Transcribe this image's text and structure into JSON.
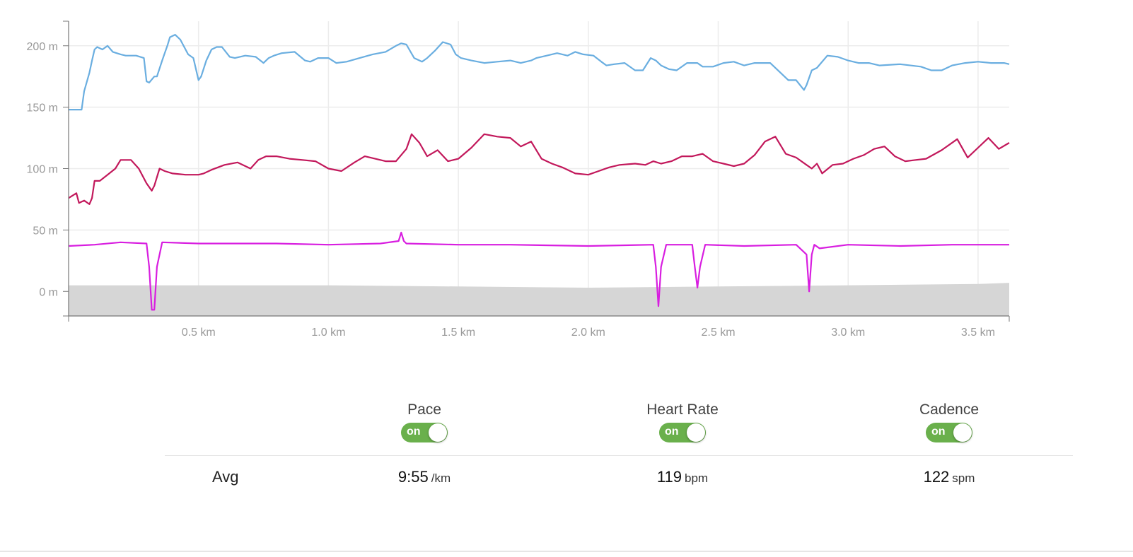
{
  "chart_data": {
    "type": "line",
    "title": "",
    "xlabel": "",
    "ylabel": "",
    "xlim": [
      0,
      3.62
    ],
    "ylim": [
      -20,
      220
    ],
    "x_ticks": [
      "0.5 km",
      "1.0 km",
      "1.5 km",
      "2.0 km",
      "2.5 km",
      "3.0 km",
      "3.5 km"
    ],
    "y_ticks": [
      "200 m",
      "150 m",
      "100 m",
      "50 m",
      "0 m"
    ],
    "grid": true,
    "elevation_fill": {
      "color": "#d6d6d6",
      "x": [
        0,
        0.5,
        1.0,
        1.5,
        2.0,
        2.5,
        3.0,
        3.5,
        3.62
      ],
      "y": [
        5,
        5,
        5,
        4,
        3,
        4,
        5,
        6,
        7
      ]
    },
    "series": [
      {
        "color": "#6aaee0",
        "x": [
          0,
          0.05,
          0.06,
          0.08,
          0.09,
          0.1,
          0.11,
          0.13,
          0.15,
          0.17,
          0.2,
          0.22,
          0.26,
          0.29,
          0.3,
          0.31,
          0.33,
          0.34,
          0.36,
          0.37,
          0.38,
          0.39,
          0.41,
          0.43,
          0.46,
          0.48,
          0.5,
          0.51,
          0.53,
          0.55,
          0.57,
          0.59,
          0.62,
          0.64,
          0.68,
          0.72,
          0.75,
          0.77,
          0.79,
          0.82,
          0.87,
          0.91,
          0.93,
          0.96,
          1.0,
          1.03,
          1.07,
          1.12,
          1.17,
          1.22,
          1.26,
          1.28,
          1.3,
          1.33,
          1.36,
          1.38,
          1.41,
          1.44,
          1.47,
          1.49,
          1.51,
          1.55,
          1.6,
          1.65,
          1.7,
          1.74,
          1.78,
          1.8,
          1.84,
          1.88,
          1.92,
          1.95,
          1.98,
          2.02,
          2.05,
          2.07,
          2.1,
          2.14,
          2.18,
          2.21,
          2.24,
          2.26,
          2.28,
          2.31,
          2.34,
          2.38,
          2.42,
          2.44,
          2.48,
          2.52,
          2.56,
          2.6,
          2.64,
          2.7,
          2.77,
          2.8,
          2.83,
          2.84,
          2.86,
          2.88,
          2.92,
          2.96,
          3.0,
          3.04,
          3.08,
          3.12,
          3.2,
          3.28,
          3.32,
          3.36,
          3.4,
          3.45,
          3.5,
          3.55,
          3.6,
          3.62
        ],
        "y": [
          148,
          148,
          163,
          178,
          188,
          197,
          199,
          197,
          200,
          195,
          193,
          192,
          192,
          190,
          171,
          170,
          175,
          175,
          188,
          194,
          200,
          207,
          209,
          205,
          193,
          190,
          172,
          175,
          188,
          197,
          199,
          199,
          191,
          190,
          192,
          191,
          186,
          190,
          192,
          194,
          195,
          188,
          187,
          190,
          190,
          186,
          187,
          190,
          193,
          195,
          200,
          202,
          201,
          190,
          187,
          190,
          196,
          203,
          201,
          193,
          190,
          188,
          186,
          187,
          188,
          186,
          188,
          190,
          192,
          194,
          192,
          195,
          193,
          192,
          187,
          184,
          185,
          186,
          180,
          180,
          190,
          188,
          184,
          181,
          180,
          186,
          186,
          183,
          183,
          186,
          187,
          184,
          186,
          186,
          172,
          172,
          164,
          168,
          180,
          182,
          192,
          191,
          188,
          186,
          186,
          184,
          185,
          183,
          180,
          180,
          184,
          186,
          187,
          186,
          186,
          185
        ]
      },
      {
        "color": "#c2185b",
        "x": [
          0,
          0.03,
          0.04,
          0.05,
          0.06,
          0.08,
          0.09,
          0.1,
          0.12,
          0.15,
          0.18,
          0.2,
          0.24,
          0.27,
          0.3,
          0.32,
          0.33,
          0.35,
          0.37,
          0.4,
          0.45,
          0.5,
          0.52,
          0.55,
          0.6,
          0.65,
          0.7,
          0.73,
          0.76,
          0.8,
          0.85,
          0.9,
          0.95,
          1.0,
          1.05,
          1.1,
          1.14,
          1.18,
          1.22,
          1.26,
          1.3,
          1.32,
          1.35,
          1.38,
          1.42,
          1.46,
          1.5,
          1.55,
          1.6,
          1.65,
          1.7,
          1.74,
          1.78,
          1.82,
          1.86,
          1.9,
          1.95,
          2.0,
          2.04,
          2.08,
          2.12,
          2.18,
          2.22,
          2.25,
          2.28,
          2.32,
          2.36,
          2.4,
          2.44,
          2.48,
          2.52,
          2.56,
          2.6,
          2.64,
          2.68,
          2.72,
          2.76,
          2.8,
          2.84,
          2.86,
          2.88,
          2.9,
          2.94,
          2.98,
          3.02,
          3.06,
          3.1,
          3.14,
          3.18,
          3.22,
          3.26,
          3.3,
          3.36,
          3.42,
          3.46,
          3.5,
          3.54,
          3.58,
          3.62
        ],
        "y": [
          76,
          80,
          72,
          73,
          74,
          71,
          76,
          90,
          90,
          95,
          100,
          107,
          107,
          100,
          88,
          82,
          86,
          100,
          98,
          96,
          95,
          95,
          96,
          99,
          103,
          105,
          100,
          107,
          110,
          110,
          108,
          107,
          106,
          100,
          98,
          105,
          110,
          108,
          106,
          106,
          116,
          128,
          121,
          110,
          115,
          106,
          108,
          117,
          128,
          126,
          125,
          118,
          122,
          108,
          104,
          101,
          96,
          95,
          98,
          101,
          103,
          104,
          103,
          106,
          104,
          106,
          110,
          110,
          112,
          106,
          104,
          102,
          104,
          111,
          122,
          126,
          112,
          109,
          103,
          100,
          104,
          96,
          103,
          104,
          108,
          111,
          116,
          118,
          110,
          106,
          107,
          108,
          115,
          124,
          109,
          117,
          125,
          116,
          121
        ]
      },
      {
        "color": "#d81ee0",
        "x": [
          0,
          0.1,
          0.2,
          0.3,
          0.31,
          0.32,
          0.33,
          0.34,
          0.36,
          0.5,
          0.8,
          1.0,
          1.2,
          1.27,
          1.28,
          1.29,
          1.3,
          1.5,
          1.7,
          2.0,
          2.25,
          2.26,
          2.27,
          2.28,
          2.3,
          2.4,
          2.41,
          2.42,
          2.43,
          2.45,
          2.6,
          2.8,
          2.84,
          2.85,
          2.86,
          2.87,
          2.89,
          3.0,
          3.2,
          3.4,
          3.62
        ],
        "y": [
          37,
          38,
          40,
          39,
          20,
          -15,
          -15,
          20,
          40,
          39,
          39,
          38,
          39,
          41,
          48,
          41,
          39,
          38,
          38,
          37,
          38,
          20,
          -12,
          20,
          38,
          38,
          20,
          3,
          20,
          38,
          37,
          38,
          30,
          0,
          30,
          38,
          35,
          38,
          37,
          38,
          38
        ]
      }
    ]
  },
  "metrics": [
    {
      "title": "Pace",
      "toggle": "on",
      "avg": "9:55",
      "unit": "/km"
    },
    {
      "title": "Heart Rate",
      "toggle": "on",
      "avg": "119",
      "unit": "bpm"
    },
    {
      "title": "Cadence",
      "toggle": "on",
      "avg": "122",
      "unit": "spm"
    }
  ],
  "avg_label": "Avg",
  "colors": {
    "toggle_on": "#6ab04c",
    "axis": "#777777",
    "grid": "#ececec"
  }
}
